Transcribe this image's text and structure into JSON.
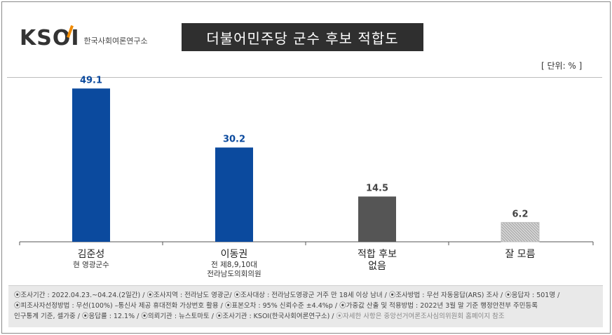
{
  "logo": {
    "mark": "KSOI",
    "subtitle": "한국사회여론연구소"
  },
  "title": "더불어민주당 군수 후보 적합도",
  "unit": "[ 단위: % ]",
  "chart_data": {
    "type": "bar",
    "ylim": [
      0,
      55
    ],
    "grid": false,
    "categories": [
      {
        "name": "김준성",
        "sub": [
          "현 영광군수"
        ]
      },
      {
        "name": "이동권",
        "sub": [
          "전 제8,9,10대",
          "전라남도의회의원"
        ]
      },
      {
        "name": "적합 후보",
        "name2": "없음",
        "sub": []
      },
      {
        "name": "잘 모름",
        "sub": []
      }
    ],
    "values": [
      49.1,
      30.2,
      14.5,
      6.2
    ],
    "value_labels": [
      "49.1",
      "30.2",
      "14.5",
      "6.2"
    ],
    "colors": [
      "#0b4a9e",
      "#0b4a9e",
      "#555555",
      "hatch"
    ],
    "label_colors": [
      "#0b4a9e",
      "#0b4a9e",
      "#444444",
      "#444444"
    ]
  },
  "footer": {
    "line1": "⦿조사기간 : 2022.04.23.~04.24.(2일간) / ⦿조사지역 : 전라남도 영광군/ ⦿조사대상 : 전라남도영광군 거주 만 18세 이상 남녀 / ⦿조사방법 : 무선 자동응답(ARS) 조사 / ⦿응답자 : 501명 /",
    "line2": "⦿피조사자선정방법 : 무선(100%) –통신사 제공 휴대전화 가상번호 활용 / ⦿표본오차 : 95% 신뢰수준 ±4.4%p / ⦿가중값 산출 및 적용방법 : 2022년 3월 말 기준 행정안전부 주민등록",
    "line3a": "인구통계 기준, 셀가중 / ⦿응답률 : 12.1% / ⦿의뢰기관 : 뉴스토마토 / ⦿조사기관 : KSOI(한국사회여론연구소) /",
    "line3b": " ⦿자세한 사항은 중앙선거여론조사심의위원회 홈페이지 참조"
  }
}
